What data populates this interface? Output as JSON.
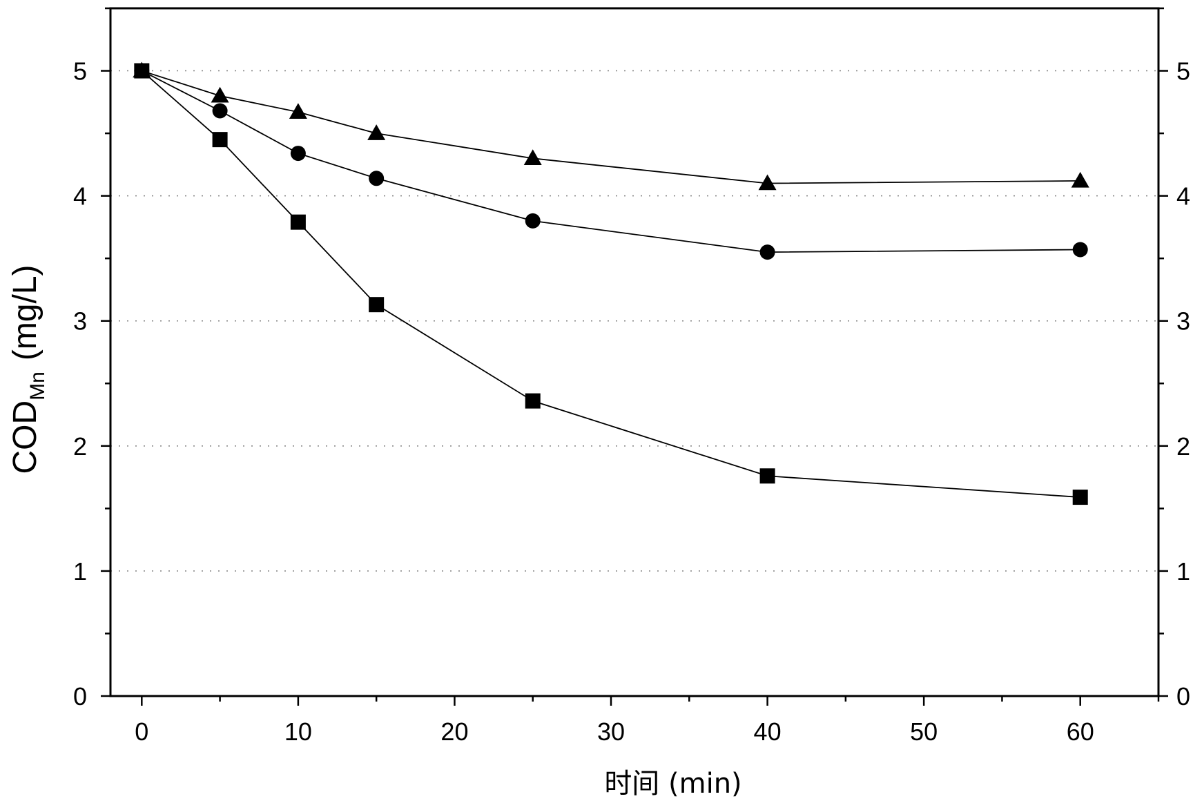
{
  "chart_data": {
    "type": "line",
    "title": "",
    "xlabel": "时间 (min)",
    "ylabel": {
      "main": "COD",
      "subscript": "Mn",
      "unit": "(mg/L)"
    },
    "xlim": [
      -2,
      65
    ],
    "ylim": [
      0,
      5.5
    ],
    "xticks": [
      0,
      10,
      20,
      30,
      40,
      50,
      60
    ],
    "yticks": [
      0,
      1,
      2,
      3,
      4,
      5
    ],
    "grid": "dotted horizontal",
    "x": [
      0,
      5,
      10,
      15,
      25,
      40,
      60
    ],
    "series": [
      {
        "marker": "triangle",
        "values": [
          5.0,
          4.8,
          4.67,
          4.5,
          4.3,
          4.1,
          4.12
        ]
      },
      {
        "marker": "circle",
        "values": [
          5.0,
          4.68,
          4.34,
          4.14,
          3.8,
          3.55,
          3.57
        ]
      },
      {
        "marker": "square",
        "values": [
          5.0,
          4.45,
          3.79,
          3.13,
          2.36,
          1.76,
          1.59
        ]
      }
    ],
    "colors": {
      "line": "#000000",
      "marker": "#000000",
      "grid": "#808080"
    }
  }
}
